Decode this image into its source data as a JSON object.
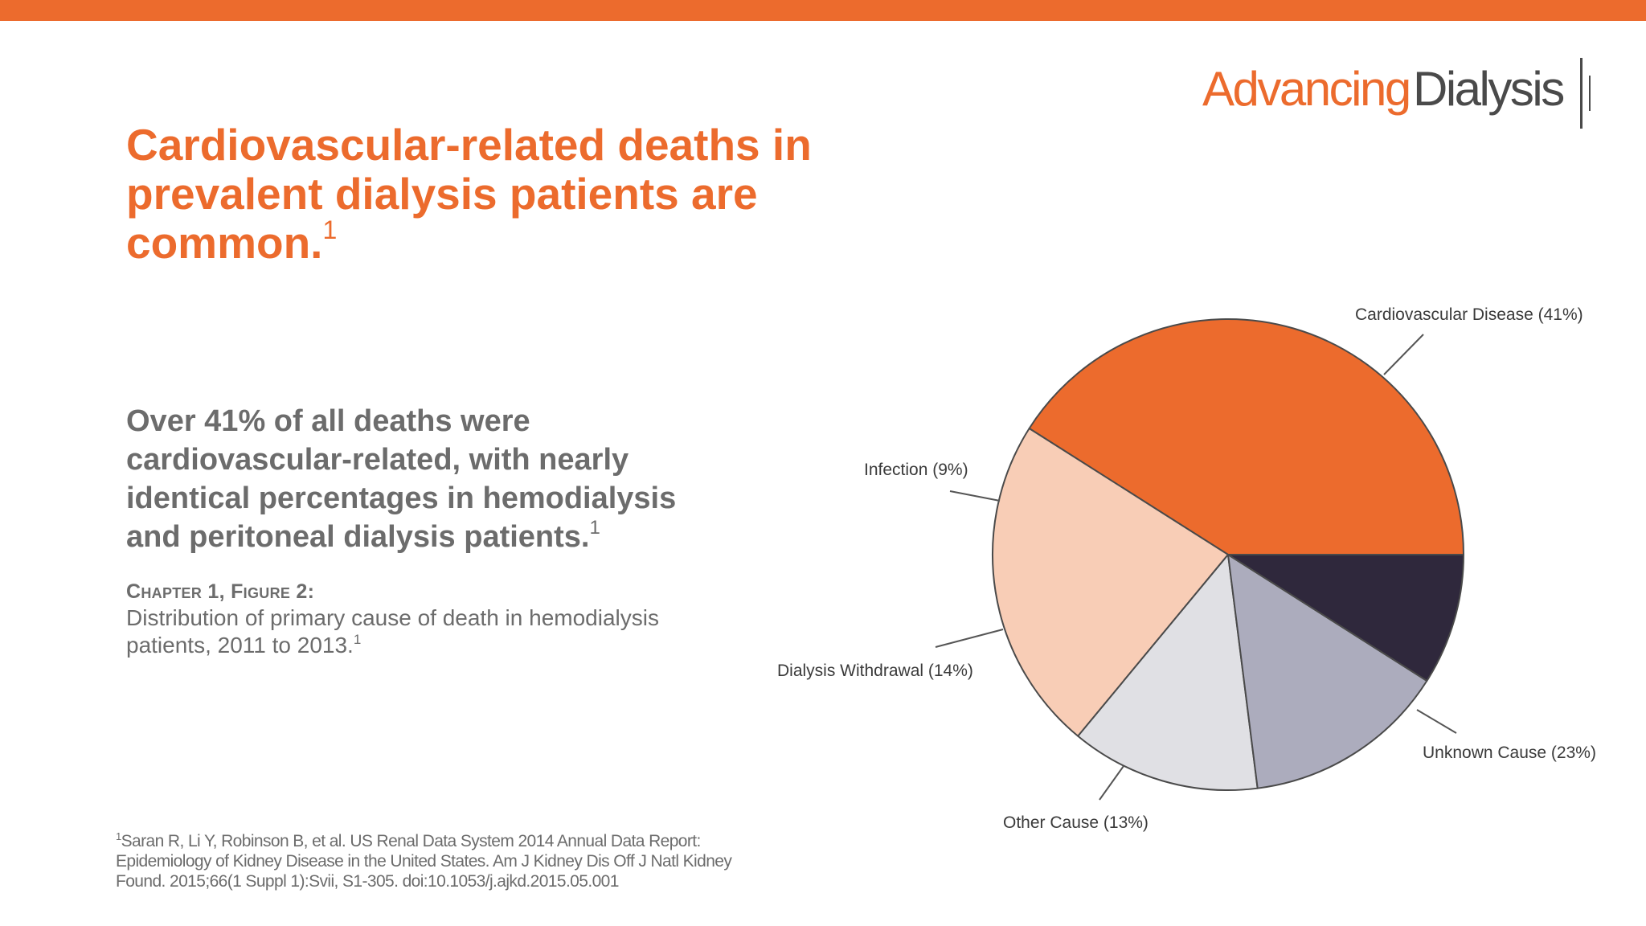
{
  "header": {
    "accent_color": "#ec6b2d",
    "logo": {
      "word1": "Advancing",
      "word2": "Dialysis"
    }
  },
  "slide": {
    "title": "Cardiovascular-related deaths in prevalent dialysis patients are common.",
    "title_sup": "1",
    "body": "Over 41% of all deaths were cardiovascular-related, with nearly identical percentages in hemodialysis and peritoneal dialysis patients.",
    "body_sup": "1",
    "caption_heading": "Chapter 1, Figure 2:",
    "caption": "Distribution of primary cause of death in hemodialysis patients, 2011 to 2013.",
    "caption_sup": "1",
    "reference_sup": "1",
    "reference": "Saran R, Li Y, Robinson B, et al. US Renal Data System 2014 Annual Data Report: Epidemiology of Kidney Disease in the United States. Am J Kidney Dis Off J Natl Kidney Found. 2015;66(1 Suppl 1):Svii, S1-305. doi:10.1053/j.ajkd.2015.05.001"
  },
  "chart_data": {
    "type": "pie",
    "title": "",
    "slices": [
      {
        "label": "Cardiovascular Disease (41%)",
        "value": 41,
        "color": "#ec6b2d"
      },
      {
        "label": "Unknown Cause (23%)",
        "value": 23,
        "color": "#f8cdb6"
      },
      {
        "label": "Other Cause (13%)",
        "value": 13,
        "color": "#e0e0e4"
      },
      {
        "label": "Dialysis Withdrawal (14%)",
        "value": 14,
        "color": "#acacbd"
      },
      {
        "label": "Infection (9%)",
        "value": 9,
        "color": "#2f283c"
      }
    ],
    "start": "3 o'clock",
    "direction": "counterclockwise",
    "outline_color": "#4a4a4a"
  }
}
